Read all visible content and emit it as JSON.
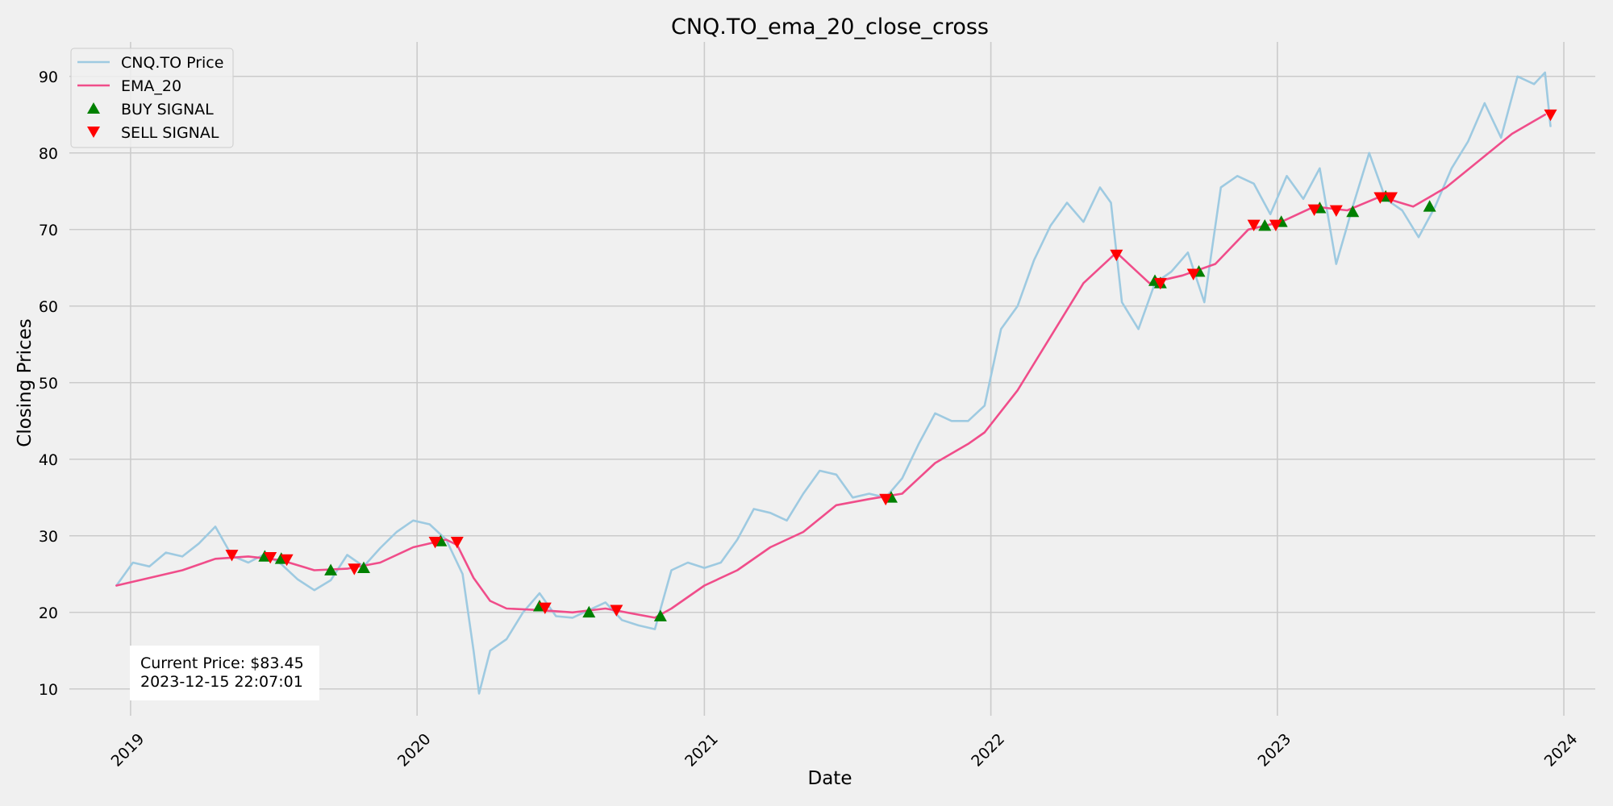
{
  "chart_data": {
    "type": "line",
    "title": "CNQ.TO_ema_20_close_cross",
    "xlabel": "Date",
    "ylabel": "Closing Prices",
    "xlim": [
      "2018-10-15",
      "2024-02-10"
    ],
    "ylim": [
      6.5,
      94.5
    ],
    "x_ticks": [
      "2019",
      "2020",
      "2021",
      "2022",
      "2023",
      "2024"
    ],
    "y_ticks": [
      10,
      20,
      30,
      40,
      50,
      60,
      70,
      80,
      90
    ],
    "grid": true,
    "legend_position": "top-left",
    "legend": [
      {
        "label": "CNQ.TO Price",
        "kind": "line",
        "color": "#9ecae1"
      },
      {
        "label": "EMA_20",
        "kind": "line",
        "color": "#f04d8a"
      },
      {
        "label": "BUY SIGNAL",
        "kind": "triangle-up",
        "color": "#008000"
      },
      {
        "label": "SELL SIGNAL",
        "kind": "triangle-down",
        "color": "#ff0000"
      }
    ],
    "series": [
      {
        "name": "CNQ.TO Price",
        "color": "#9ecae1",
        "points": [
          [
            "2018-12-14",
            23.5
          ],
          [
            "2019-01-04",
            26.5
          ],
          [
            "2019-01-25",
            26.0
          ],
          [
            "2019-02-15",
            27.8
          ],
          [
            "2019-03-08",
            27.3
          ],
          [
            "2019-03-29",
            29.0
          ],
          [
            "2019-04-19",
            31.2
          ],
          [
            "2019-05-10",
            27.4
          ],
          [
            "2019-05-31",
            26.5
          ],
          [
            "2019-06-21",
            27.6
          ],
          [
            "2019-07-12",
            26.3
          ],
          [
            "2019-08-02",
            24.3
          ],
          [
            "2019-08-23",
            22.9
          ],
          [
            "2019-09-13",
            24.2
          ],
          [
            "2019-10-04",
            27.5
          ],
          [
            "2019-10-25",
            26.0
          ],
          [
            "2019-11-15",
            28.4
          ],
          [
            "2019-12-06",
            30.5
          ],
          [
            "2019-12-27",
            32.0
          ],
          [
            "2020-01-17",
            31.5
          ],
          [
            "2020-02-07",
            29.5
          ],
          [
            "2020-02-28",
            25.0
          ],
          [
            "2020-03-13",
            15.0
          ],
          [
            "2020-03-20",
            9.4
          ],
          [
            "2020-04-03",
            15.0
          ],
          [
            "2020-04-24",
            16.5
          ],
          [
            "2020-05-15",
            20.0
          ],
          [
            "2020-06-05",
            22.5
          ],
          [
            "2020-06-26",
            19.5
          ],
          [
            "2020-07-17",
            19.3
          ],
          [
            "2020-08-07",
            20.3
          ],
          [
            "2020-08-28",
            21.3
          ],
          [
            "2020-09-18",
            19.0
          ],
          [
            "2020-10-09",
            18.3
          ],
          [
            "2020-10-30",
            17.8
          ],
          [
            "2020-11-20",
            25.5
          ],
          [
            "2020-12-11",
            26.5
          ],
          [
            "2021-01-01",
            25.8
          ],
          [
            "2021-01-22",
            26.5
          ],
          [
            "2021-02-12",
            29.5
          ],
          [
            "2021-03-05",
            33.5
          ],
          [
            "2021-03-26",
            33.0
          ],
          [
            "2021-04-16",
            32.0
          ],
          [
            "2021-05-07",
            35.5
          ],
          [
            "2021-05-28",
            38.5
          ],
          [
            "2021-06-18",
            38.0
          ],
          [
            "2021-07-09",
            35.0
          ],
          [
            "2021-07-30",
            35.5
          ],
          [
            "2021-08-20",
            35.0
          ],
          [
            "2021-09-10",
            37.5
          ],
          [
            "2021-10-01",
            42.0
          ],
          [
            "2021-10-22",
            46.0
          ],
          [
            "2021-11-12",
            45.0
          ],
          [
            "2021-12-03",
            45.0
          ],
          [
            "2021-12-24",
            47.0
          ],
          [
            "2022-01-14",
            57.0
          ],
          [
            "2022-02-04",
            60.0
          ],
          [
            "2022-02-25",
            66.0
          ],
          [
            "2022-03-18",
            70.5
          ],
          [
            "2022-04-08",
            73.5
          ],
          [
            "2022-04-29",
            71.0
          ],
          [
            "2022-05-20",
            75.5
          ],
          [
            "2022-06-03",
            73.5
          ],
          [
            "2022-06-17",
            60.5
          ],
          [
            "2022-07-08",
            57.0
          ],
          [
            "2022-07-29",
            63.0
          ],
          [
            "2022-08-19",
            64.5
          ],
          [
            "2022-09-09",
            67.0
          ],
          [
            "2022-09-30",
            60.5
          ],
          [
            "2022-10-21",
            75.5
          ],
          [
            "2022-11-11",
            77.0
          ],
          [
            "2022-12-02",
            76.0
          ],
          [
            "2022-12-23",
            72.0
          ],
          [
            "2023-01-13",
            77.0
          ],
          [
            "2023-02-03",
            74.0
          ],
          [
            "2023-02-24",
            78.0
          ],
          [
            "2023-03-17",
            65.5
          ],
          [
            "2023-04-07",
            73.0
          ],
          [
            "2023-04-28",
            80.0
          ],
          [
            "2023-05-19",
            74.0
          ],
          [
            "2023-06-09",
            72.5
          ],
          [
            "2023-06-30",
            69.0
          ],
          [
            "2023-07-21",
            73.0
          ],
          [
            "2023-08-11",
            78.0
          ],
          [
            "2023-09-01",
            81.5
          ],
          [
            "2023-09-22",
            86.5
          ],
          [
            "2023-10-13",
            82.0
          ],
          [
            "2023-11-03",
            90.0
          ],
          [
            "2023-11-24",
            89.0
          ],
          [
            "2023-12-08",
            90.5
          ],
          [
            "2023-12-15",
            83.5
          ]
        ]
      },
      {
        "name": "EMA_20",
        "color": "#f04d8a",
        "points": [
          [
            "2018-12-14",
            23.5
          ],
          [
            "2019-01-25",
            24.5
          ],
          [
            "2019-03-08",
            25.5
          ],
          [
            "2019-04-19",
            27.0
          ],
          [
            "2019-05-31",
            27.3
          ],
          [
            "2019-07-12",
            26.8
          ],
          [
            "2019-08-23",
            25.5
          ],
          [
            "2019-10-04",
            25.7
          ],
          [
            "2019-11-15",
            26.5
          ],
          [
            "2019-12-27",
            28.5
          ],
          [
            "2020-02-07",
            29.5
          ],
          [
            "2020-02-21",
            28.8
          ],
          [
            "2020-03-13",
            24.5
          ],
          [
            "2020-04-03",
            21.5
          ],
          [
            "2020-04-24",
            20.5
          ],
          [
            "2020-06-05",
            20.3
          ],
          [
            "2020-07-17",
            20.0
          ],
          [
            "2020-08-28",
            20.5
          ],
          [
            "2020-10-09",
            19.7
          ],
          [
            "2020-10-30",
            19.3
          ],
          [
            "2020-11-20",
            20.5
          ],
          [
            "2021-01-01",
            23.5
          ],
          [
            "2021-02-12",
            25.5
          ],
          [
            "2021-03-26",
            28.5
          ],
          [
            "2021-05-07",
            30.5
          ],
          [
            "2021-06-18",
            34.0
          ],
          [
            "2021-07-30",
            34.8
          ],
          [
            "2021-09-10",
            35.5
          ],
          [
            "2021-10-22",
            39.5
          ],
          [
            "2021-12-03",
            42.0
          ],
          [
            "2021-12-24",
            43.5
          ],
          [
            "2022-02-04",
            49.0
          ],
          [
            "2022-03-18",
            56.0
          ],
          [
            "2022-04-29",
            63.0
          ],
          [
            "2022-06-10",
            67.0
          ],
          [
            "2022-07-22",
            63.0
          ],
          [
            "2022-09-02",
            64.0
          ],
          [
            "2022-10-14",
            65.5
          ],
          [
            "2022-11-25",
            70.0
          ],
          [
            "2023-01-06",
            71.0
          ],
          [
            "2023-02-17",
            73.0
          ],
          [
            "2023-03-31",
            72.5
          ],
          [
            "2023-05-12",
            74.3
          ],
          [
            "2023-06-23",
            73.0
          ],
          [
            "2023-08-04",
            75.5
          ],
          [
            "2023-09-15",
            79.0
          ],
          [
            "2023-10-27",
            82.5
          ],
          [
            "2023-12-08",
            85.0
          ]
        ]
      }
    ],
    "buy_signals": [
      [
        "2019-06-21",
        27.3
      ],
      [
        "2019-07-12",
        27.0
      ],
      [
        "2019-09-13",
        25.5
      ],
      [
        "2019-10-25",
        25.8
      ],
      [
        "2020-01-31",
        29.3
      ],
      [
        "2020-06-05",
        20.8
      ],
      [
        "2020-08-07",
        20.0
      ],
      [
        "2020-11-06",
        19.5
      ],
      [
        "2021-08-27",
        35.0
      ],
      [
        "2022-07-29",
        63.3
      ],
      [
        "2022-08-05",
        63.0
      ],
      [
        "2022-09-23",
        64.5
      ],
      [
        "2022-12-16",
        70.5
      ],
      [
        "2023-01-06",
        71.0
      ],
      [
        "2023-02-24",
        72.8
      ],
      [
        "2023-04-07",
        72.3
      ],
      [
        "2023-05-19",
        74.3
      ],
      [
        "2023-07-14",
        73.0
      ]
    ],
    "sell_signals": [
      [
        "2019-05-10",
        27.5
      ],
      [
        "2019-06-28",
        27.2
      ],
      [
        "2019-07-19",
        26.9
      ],
      [
        "2019-10-13",
        25.7
      ],
      [
        "2020-01-24",
        29.2
      ],
      [
        "2020-02-21",
        29.2
      ],
      [
        "2020-06-12",
        20.6
      ],
      [
        "2020-09-11",
        20.3
      ],
      [
        "2021-08-20",
        34.8
      ],
      [
        "2022-06-10",
        66.7
      ],
      [
        "2022-08-05",
        63.0
      ],
      [
        "2022-09-16",
        64.2
      ],
      [
        "2022-12-02",
        70.6
      ],
      [
        "2022-12-30",
        70.6
      ],
      [
        "2023-02-17",
        72.6
      ],
      [
        "2023-03-17",
        72.5
      ],
      [
        "2023-05-12",
        74.2
      ],
      [
        "2023-05-26",
        74.2
      ],
      [
        "2023-12-15",
        85.0
      ]
    ],
    "annotation": [
      "Current Price: $83.45",
      "2023-12-15 22:07:01"
    ]
  }
}
